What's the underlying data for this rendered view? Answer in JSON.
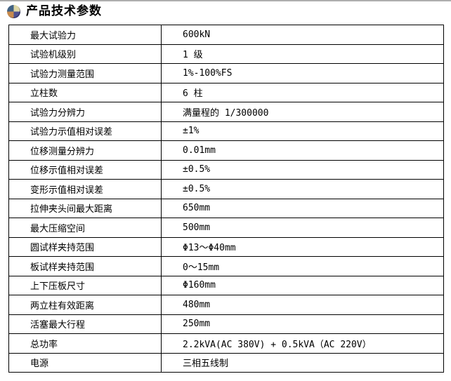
{
  "header": {
    "title": "产品技术参数",
    "icon": "sphere-quadrant-icon"
  },
  "colors": {
    "text": "#000000",
    "table_border": "#000000",
    "top_edge_line": "#aeaeae",
    "icon_top_left": "#416283",
    "icon_top_right": "#ded7a6",
    "icon_bottom_left": "#c78a4d",
    "icon_bottom_right": "#4d5191"
  },
  "table": {
    "columns": [
      "parameter",
      "value"
    ],
    "rows": [
      {
        "label": "最大试验力",
        "value": "600kN"
      },
      {
        "label": "试验机级别",
        "value": "1 级"
      },
      {
        "label": "试验力测量范围",
        "value": "1%-100%FS"
      },
      {
        "label": "立柱数",
        "value": "6 柱"
      },
      {
        "label": "试验力分辨力",
        "value": "满量程的 1/300000"
      },
      {
        "label": "试验力示值相对误差",
        "value": "±1%"
      },
      {
        "label": "位移测量分辨力",
        "value": "0.01mm"
      },
      {
        "label": "位移示值相对误差",
        "value": "±0.5%"
      },
      {
        "label": "变形示值相对误差",
        "value": "±0.5%"
      },
      {
        "label": "拉伸夹头间最大距离",
        "value": "650mm"
      },
      {
        "label": "最大压缩空间",
        "value": "500mm"
      },
      {
        "label": "圆试样夹持范围",
        "value": "Φ13～Φ40mm"
      },
      {
        "label": "板试样夹持范围",
        "value": "0～15mm"
      },
      {
        "label": "上下压板尺寸",
        "value": "Φ160mm"
      },
      {
        "label": "两立柱有效距离",
        "value": "480mm"
      },
      {
        "label": "活塞最大行程",
        "value": "250mm"
      },
      {
        "label": "总功率",
        "value": "2.2kVA(AC 380V) + 0.5kVA（AC 220V）"
      },
      {
        "label": "电源",
        "value": "三相五线制"
      }
    ]
  }
}
